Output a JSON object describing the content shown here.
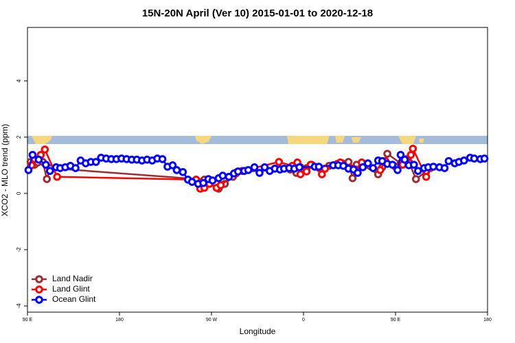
{
  "chart_data": {
    "type": "line",
    "title": "15N-20N April (Ver 10)   2015-01-01 to 2020-12-18",
    "x_label": "Longitude",
    "y_label": "XCO2 - MLO trend (ppm)",
    "xlim": [
      90,
      540
    ],
    "ylim": [
      -4.22,
      5.9
    ],
    "xticks": [
      {
        "value": 90,
        "label": "90 E"
      },
      180,
      {
        "value": 270,
        "label": "90 W"
      },
      {
        "value": 360,
        "label": "0"
      },
      {
        "value": 450,
        "label": "90 E"
      },
      {
        "value": 540,
        "label": "180"
      }
    ],
    "yticks": [
      -4,
      -2,
      0,
      2,
      4
    ],
    "grid": false,
    "legend": "bottom-left",
    "series": [
      {
        "name": "Land Nadir",
        "color": "#9b2d30",
        "x": [
          93,
          97,
          100,
          105,
          109,
          112,
          263,
          277,
          283,
          291,
          295,
          347,
          353,
          357,
          363,
          368,
          379,
          385,
          392,
          398,
          404,
          408,
          412,
          418,
          433,
          437,
          442,
          455,
          459,
          463,
          470,
          480
        ],
        "values": [
          1.12,
          1.02,
          1.1,
          1.12,
          0.51,
          0.9,
          0.49,
          0.17,
          0.34,
          0.59,
          0.76,
          0.85,
          0.73,
          0.93,
          0.9,
          1.02,
          0.85,
          0.98,
          1.02,
          1.07,
          1.12,
          0.54,
          1.02,
          1.0,
          0.68,
          0.93,
          1.41,
          1.07,
          1.12,
          1.12,
          0.51,
          0.78
        ]
      },
      {
        "name": "Land Glint",
        "color": "#ff0000",
        "x": [
          94,
          97,
          103,
          107,
          119,
          255,
          259,
          263,
          268,
          275,
          279,
          294,
          300,
          336,
          349,
          354,
          357,
          363,
          367,
          378,
          381,
          393,
          396,
          406,
          411,
          417,
          435,
          440,
          450,
          457,
          461,
          465,
          467,
          480,
          484
        ],
        "values": [
          1.0,
          1.22,
          1.37,
          1.56,
          0.59,
          0.49,
          0.17,
          0.2,
          0.34,
          0.2,
          0.29,
          0.71,
          0.8,
          1.12,
          0.98,
          1.1,
          0.68,
          0.78,
          1.02,
          0.68,
          0.88,
          1.05,
          1.1,
          0.9,
          0.85,
          1.1,
          0.83,
          1.15,
          0.95,
          1.02,
          1.22,
          1.37,
          1.59,
          0.59,
          0.9
        ]
      },
      {
        "name": "Ocean Glint",
        "color": "#0000ff",
        "x": [
          91,
          95,
          101,
          108,
          112,
          118,
          122,
          127,
          132,
          137,
          142,
          147,
          152,
          157,
          162,
          167,
          172,
          177,
          182,
          187,
          192,
          197,
          202,
          207,
          212,
          217,
          222,
          227,
          232,
          236,
          242,
          247,
          251,
          257,
          262,
          267,
          271,
          277,
          281,
          287,
          292,
          296,
          302,
          306,
          312,
          317,
          322,
          327,
          332,
          337,
          341,
          346,
          351,
          356,
          371,
          375,
          389,
          394,
          399,
          404,
          409,
          413,
          418,
          423,
          428,
          433,
          437,
          442,
          447,
          452,
          455,
          459,
          463,
          468,
          472,
          478,
          482,
          487,
          493,
          498,
          502,
          508,
          512,
          517,
          523,
          527,
          533,
          537
        ],
        "values": [
          0.83,
          1.37,
          1.2,
          1.02,
          0.8,
          0.93,
          0.9,
          0.93,
          0.98,
          0.9,
          1.17,
          1.07,
          1.12,
          1.12,
          1.27,
          1.24,
          1.22,
          1.22,
          1.24,
          1.22,
          1.2,
          1.2,
          1.17,
          1.2,
          1.17,
          1.24,
          1.22,
          0.95,
          1.0,
          0.83,
          0.76,
          0.49,
          0.41,
          0.34,
          0.37,
          0.51,
          0.46,
          0.54,
          0.63,
          0.59,
          0.71,
          0.78,
          0.8,
          0.83,
          0.93,
          0.73,
          0.93,
          0.8,
          0.88,
          0.85,
          0.88,
          0.9,
          0.88,
          0.93,
          0.95,
          0.95,
          1.0,
          1.0,
          0.98,
          0.88,
          0.85,
          0.73,
          0.93,
          1.07,
          0.9,
          1.17,
          1.15,
          1.05,
          1.02,
          0.83,
          1.37,
          1.2,
          1.0,
          1.02,
          0.8,
          0.9,
          0.93,
          0.95,
          0.93,
          0.9,
          1.15,
          1.07,
          1.12,
          1.17,
          1.27,
          1.24,
          1.22,
          1.24
        ]
      }
    ]
  }
}
